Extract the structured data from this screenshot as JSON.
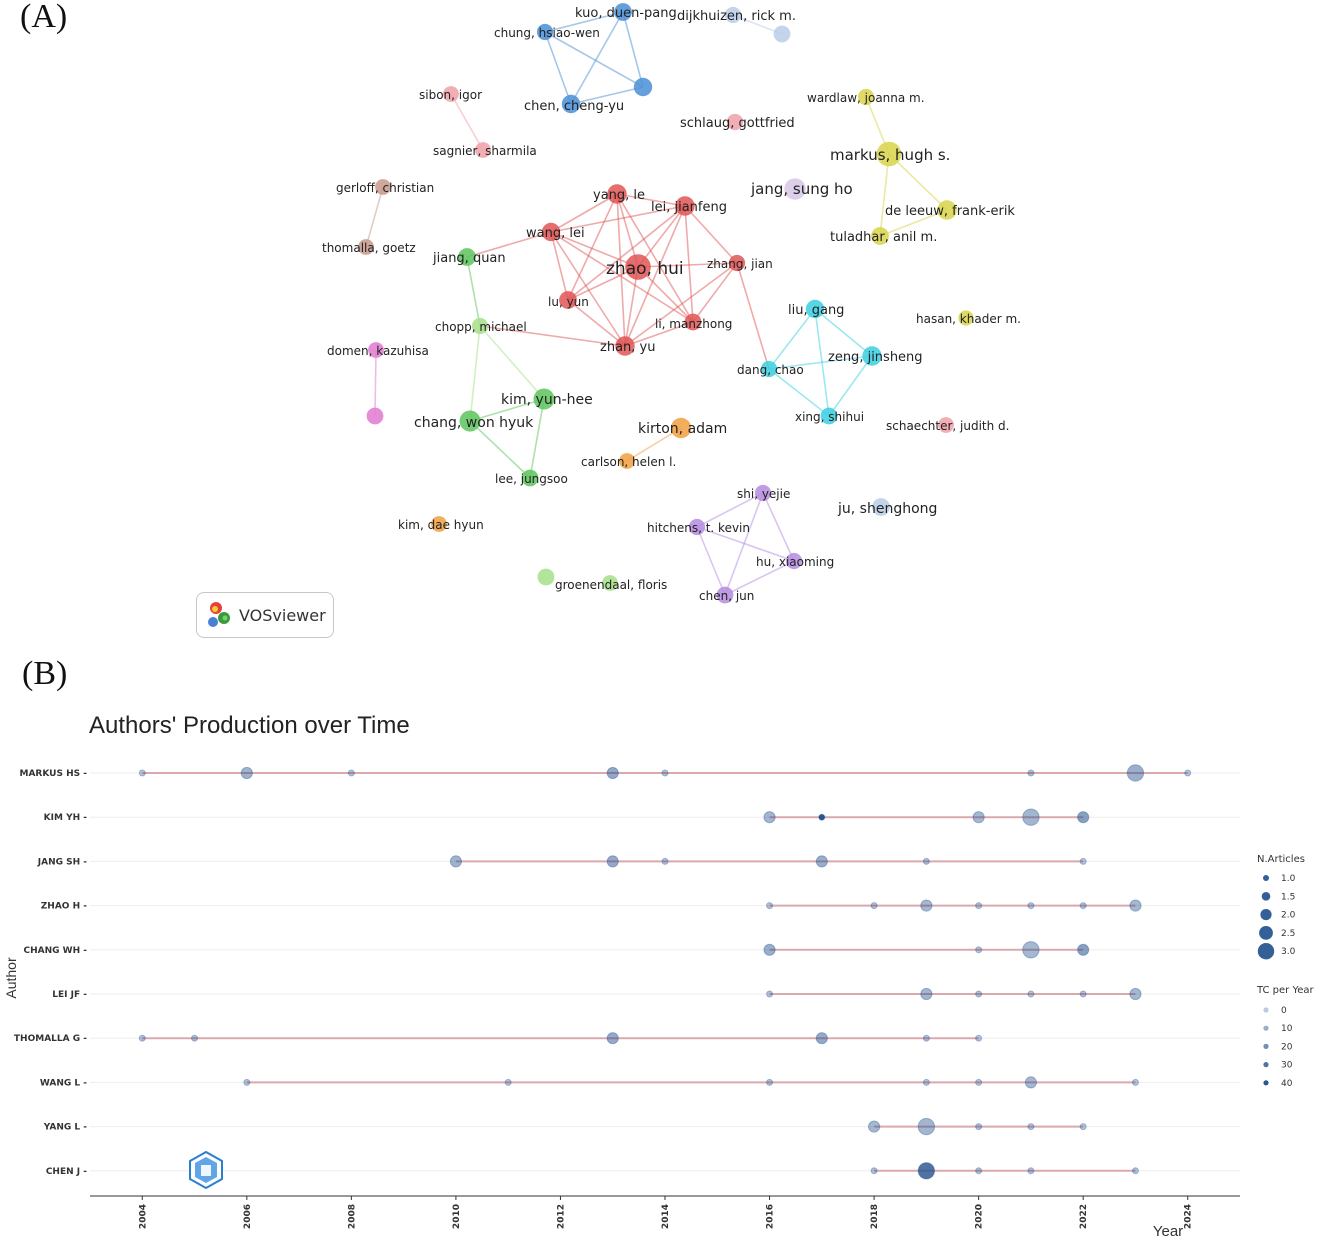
{
  "panels": {
    "a_label": "(A)",
    "b_label": "(B)"
  },
  "vosviewer": {
    "logo_text": "VOSviewer"
  },
  "chart_data": [
    {
      "type": "network",
      "clusters": {
        "red": "#e05555",
        "blue": "#4a8fd6",
        "yellow": "#d8d44a",
        "cyan": "#3ccfe0",
        "green": "#5cc45c",
        "purple": "#b58be0",
        "orange": "#f0a040",
        "pink": "#e07ad0",
        "lightpink": "#f0a0a8",
        "brown": "#c8998a",
        "lightblue": "#b9cde8",
        "lavender": "#d7c6e6",
        "lightgreen": "#a6df8a"
      },
      "nodes": [
        {
          "id": "zhao",
          "label": "zhao, hui",
          "cluster": "red",
          "size": 3
        },
        {
          "id": "yangle",
          "label": "yang, le",
          "cluster": "red",
          "size": 1.8
        },
        {
          "id": "lei",
          "label": "lei, jianfeng",
          "cluster": "red",
          "size": 1.8
        },
        {
          "id": "wanglei",
          "label": "wang, lei",
          "cluster": "red",
          "size": 1.6
        },
        {
          "id": "zhangjian",
          "label": "zhang, jian",
          "cluster": "red",
          "size": 1.2
        },
        {
          "id": "luyun",
          "label": "lu, yun",
          "cluster": "red",
          "size": 1.5
        },
        {
          "id": "limz",
          "label": "li, manzhong",
          "cluster": "red",
          "size": 1.3
        },
        {
          "id": "zhanyu",
          "label": "zhan, yu",
          "cluster": "red",
          "size": 1.8
        },
        {
          "id": "kuo",
          "label": "kuo, duen-pang",
          "cluster": "blue",
          "size": 1.5
        },
        {
          "id": "chunghw",
          "label": "chung, hsiao-wen",
          "cluster": "blue",
          "size": 1.2
        },
        {
          "id": "chency",
          "label": "chen, cheng-yu",
          "cluster": "blue",
          "size": 1.6
        },
        {
          "id": "blue4",
          "label": "",
          "cluster": "blue",
          "size": 1.6
        },
        {
          "id": "dijk",
          "label": "dijkhuizen, rick m.",
          "cluster": "lightblue",
          "size": 1.2
        },
        {
          "id": "lb2",
          "label": "",
          "cluster": "lightblue",
          "size": 1.3
        },
        {
          "id": "markus",
          "label": "markus, hugh s.",
          "cluster": "yellow",
          "size": 2.8
        },
        {
          "id": "wardlaw",
          "label": "wardlaw, joanna m.",
          "cluster": "yellow",
          "size": 1.2
        },
        {
          "id": "deleeuw",
          "label": "de leeuw, frank-erik",
          "cluster": "yellow",
          "size": 1.8
        },
        {
          "id": "tuladhar",
          "label": "tuladhar, anil m.",
          "cluster": "yellow",
          "size": 1.5
        },
        {
          "id": "jangsh",
          "label": "jang, sung ho",
          "cluster": "lavender",
          "size": 2.2
        },
        {
          "id": "schlaug",
          "label": "schlaug, gottfried",
          "cluster": "lightpink",
          "size": 1.2
        },
        {
          "id": "sibon",
          "label": "sibon, igor",
          "cluster": "lightpink",
          "size": 1.1
        },
        {
          "id": "sagnier",
          "label": "sagnier, sharmila",
          "cluster": "lightpink",
          "size": 1.1
        },
        {
          "id": "gerloff",
          "label": "gerloff, christian",
          "cluster": "brown",
          "size": 1.1
        },
        {
          "id": "thomalla",
          "label": "thomalla, goetz",
          "cluster": "brown",
          "size": 1.1
        },
        {
          "id": "jiangq",
          "label": "jiang, quan",
          "cluster": "green",
          "size": 1.5
        },
        {
          "id": "chopp",
          "label": "chopp, michael",
          "cluster": "lightgreen",
          "size": 1.2
        },
        {
          "id": "kimyh",
          "label": "kim, yun-hee",
          "cluster": "green",
          "size": 2.1
        },
        {
          "id": "changwh",
          "label": "chang, won hyuk",
          "cluster": "green",
          "size": 2.1
        },
        {
          "id": "leejs",
          "label": "lee, jungsoo",
          "cluster": "green",
          "size": 1.3
        },
        {
          "id": "domen",
          "label": "domen, kazuhisa",
          "cluster": "pink",
          "size": 1.1
        },
        {
          "id": "pink2",
          "label": "",
          "cluster": "pink",
          "size": 1.3
        },
        {
          "id": "kirton",
          "label": "kirton, adam",
          "cluster": "orange",
          "size": 2.0
        },
        {
          "id": "carlson",
          "label": "carlson, helen l.",
          "cluster": "orange",
          "size": 1.1
        },
        {
          "id": "liugang",
          "label": "liu, gang",
          "cluster": "cyan",
          "size": 1.6
        },
        {
          "id": "zengjs",
          "label": "zeng, jinsheng",
          "cluster": "cyan",
          "size": 1.8
        },
        {
          "id": "dangchao",
          "label": "dang, chao",
          "cluster": "cyan",
          "size": 1.2
        },
        {
          "id": "xingsh",
          "label": "xing, shihui",
          "cluster": "cyan",
          "size": 1.3
        },
        {
          "id": "hasan",
          "label": "hasan, khader m.",
          "cluster": "yellow",
          "size": 1.0
        },
        {
          "id": "schaechter",
          "label": "schaechter, judith d.",
          "cluster": "lightpink",
          "size": 1.1
        },
        {
          "id": "shiyj",
          "label": "shi, yejie",
          "cluster": "purple",
          "size": 1.2
        },
        {
          "id": "hitchens",
          "label": "hitchens, t. kevin",
          "cluster": "purple",
          "size": 1.2
        },
        {
          "id": "huxm",
          "label": "hu, xiaoming",
          "cluster": "purple",
          "size": 1.2
        },
        {
          "id": "chenjun",
          "label": "chen, jun",
          "cluster": "purple",
          "size": 1.3
        },
        {
          "id": "jush",
          "label": "ju, shenghong",
          "cluster": "lightblue",
          "size": 1.5
        },
        {
          "id": "kimdh",
          "label": "kim, dae hyun",
          "cluster": "orange",
          "size": 1.1
        },
        {
          "id": "groen",
          "label": "groenendaal, floris",
          "cluster": "lightgreen",
          "size": 1.1
        },
        {
          "id": "lg2",
          "label": "",
          "cluster": "lightgreen",
          "size": 1.3
        }
      ],
      "links": [
        [
          "zhao",
          "yangle"
        ],
        [
          "zhao",
          "lei"
        ],
        [
          "zhao",
          "wanglei"
        ],
        [
          "zhao",
          "zhangjian"
        ],
        [
          "zhao",
          "luyun"
        ],
        [
          "zhao",
          "limz"
        ],
        [
          "zhao",
          "zhanyu"
        ],
        [
          "yangle",
          "lei"
        ],
        [
          "yangle",
          "wanglei"
        ],
        [
          "yangle",
          "luyun"
        ],
        [
          "yangle",
          "zhanyu"
        ],
        [
          "yangle",
          "limz"
        ],
        [
          "lei",
          "wanglei"
        ],
        [
          "lei",
          "luyun"
        ],
        [
          "lei",
          "zhanyu"
        ],
        [
          "lei",
          "limz"
        ],
        [
          "lei",
          "zhangjian"
        ],
        [
          "wanglei",
          "luyun"
        ],
        [
          "wanglei",
          "zhanyu"
        ],
        [
          "wanglei",
          "limz"
        ],
        [
          "luyun",
          "zhanyu"
        ],
        [
          "limz",
          "zhanyu"
        ],
        [
          "zhangjian",
          "zhanyu"
        ],
        [
          "zhangjian",
          "limz"
        ],
        [
          "zhangjian",
          "dangchao"
        ],
        [
          "wanglei",
          "jiangq"
        ],
        [
          "zhanyu",
          "chopp"
        ],
        [
          "kuo",
          "chunghw"
        ],
        [
          "kuo",
          "chency"
        ],
        [
          "kuo",
          "blue4"
        ],
        [
          "chunghw",
          "chency"
        ],
        [
          "chunghw",
          "blue4"
        ],
        [
          "chency",
          "blue4"
        ],
        [
          "dijk",
          "lb2"
        ],
        [
          "sibon",
          "sagnier"
        ],
        [
          "gerloff",
          "thomalla"
        ],
        [
          "markus",
          "wardlaw"
        ],
        [
          "markus",
          "deleeuw"
        ],
        [
          "markus",
          "tuladhar"
        ],
        [
          "deleeuw",
          "tuladhar"
        ],
        [
          "jiangq",
          "chopp"
        ],
        [
          "chopp",
          "changwh"
        ],
        [
          "chopp",
          "kimyh"
        ],
        [
          "kimyh",
          "changwh"
        ],
        [
          "kimyh",
          "leejs"
        ],
        [
          "changwh",
          "leejs"
        ],
        [
          "domen",
          "pink2"
        ],
        [
          "kirton",
          "carlson"
        ],
        [
          "liugang",
          "zengjs"
        ],
        [
          "liugang",
          "dangchao"
        ],
        [
          "liugang",
          "xingsh"
        ],
        [
          "zengjs",
          "dangchao"
        ],
        [
          "zengjs",
          "xingsh"
        ],
        [
          "dangchao",
          "xingsh"
        ],
        [
          "shiyj",
          "hitchens"
        ],
        [
          "shiyj",
          "huxm"
        ],
        [
          "shiyj",
          "chenjun"
        ],
        [
          "hitchens",
          "huxm"
        ],
        [
          "hitchens",
          "chenjun"
        ],
        [
          "huxm",
          "chenjun"
        ]
      ]
    },
    {
      "type": "scatter",
      "title": "Authors' Production over Time",
      "xlabel": "Year",
      "ylabel": "Author",
      "xlim": [
        2003,
        2025
      ],
      "x_ticks": [
        2004,
        2006,
        2008,
        2010,
        2012,
        2014,
        2016,
        2018,
        2020,
        2022,
        2024
      ],
      "authors": [
        "MARKUS HS",
        "KIM YH",
        "JANG SH",
        "ZHAO H",
        "CHANG WH",
        "LEI JF",
        "THOMALLA G",
        "WANG L",
        "YANG L",
        "CHEN J"
      ],
      "series": [
        {
          "name": "MARKUS HS",
          "points": [
            [
              2004,
              1,
              2
            ],
            [
              2006,
              2,
              8
            ],
            [
              2008,
              1,
              2
            ],
            [
              2013,
              2,
              12
            ],
            [
              2014,
              1,
              3
            ],
            [
              2021,
              1,
              3
            ],
            [
              2023,
              3,
              9
            ],
            [
              2024,
              1,
              2
            ]
          ]
        },
        {
          "name": "KIM YH",
          "points": [
            [
              2016,
              2,
              7
            ],
            [
              2017,
              1,
              40
            ],
            [
              2020,
              2,
              6
            ],
            [
              2021,
              3,
              7
            ],
            [
              2022,
              2,
              14
            ]
          ]
        },
        {
          "name": "JANG SH",
          "points": [
            [
              2010,
              2,
              8
            ],
            [
              2013,
              2,
              11
            ],
            [
              2014,
              1,
              3
            ],
            [
              2017,
              2,
              9
            ],
            [
              2019,
              1,
              3
            ],
            [
              2022,
              1,
              2
            ]
          ]
        },
        {
          "name": "ZHAO H",
          "points": [
            [
              2016,
              1,
              3
            ],
            [
              2018,
              1,
              3
            ],
            [
              2019,
              2,
              6
            ],
            [
              2020,
              1,
              2
            ],
            [
              2021,
              1,
              2
            ],
            [
              2022,
              1,
              3
            ],
            [
              2023,
              2,
              6
            ]
          ]
        },
        {
          "name": "CHANG WH",
          "points": [
            [
              2016,
              2,
              9
            ],
            [
              2020,
              1,
              2
            ],
            [
              2021,
              3,
              6
            ],
            [
              2022,
              2,
              14
            ]
          ]
        },
        {
          "name": "LEI JF",
          "points": [
            [
              2016,
              1,
              3
            ],
            [
              2019,
              2,
              7
            ],
            [
              2020,
              1,
              3
            ],
            [
              2021,
              1,
              2
            ],
            [
              2022,
              1,
              3
            ],
            [
              2023,
              2,
              6
            ]
          ]
        },
        {
          "name": "THOMALLA G",
          "points": [
            [
              2004,
              1,
              4
            ],
            [
              2005,
              1,
              4
            ],
            [
              2013,
              2,
              11
            ],
            [
              2017,
              2,
              11
            ],
            [
              2019,
              1,
              3
            ],
            [
              2020,
              1,
              2
            ]
          ]
        },
        {
          "name": "WANG L",
          "points": [
            [
              2006,
              1,
              3
            ],
            [
              2011,
              1,
              2
            ],
            [
              2016,
              1,
              3
            ],
            [
              2019,
              1,
              2
            ],
            [
              2020,
              1,
              2
            ],
            [
              2021,
              2,
              6
            ],
            [
              2023,
              1,
              2
            ]
          ]
        },
        {
          "name": "YANG L",
          "points": [
            [
              2018,
              2,
              6
            ],
            [
              2019,
              3,
              7
            ],
            [
              2020,
              1,
              3
            ],
            [
              2021,
              1,
              2
            ],
            [
              2022,
              1,
              2
            ]
          ]
        },
        {
          "name": "CHEN J",
          "points": [
            [
              2018,
              1,
              4
            ],
            [
              2019,
              3,
              30
            ],
            [
              2020,
              1,
              3
            ],
            [
              2021,
              1,
              3
            ],
            [
              2023,
              1,
              3
            ]
          ]
        }
      ],
      "legend_size": {
        "title": "N.Articles",
        "entries": [
          "1.0",
          "1.5",
          "2.0",
          "2.5",
          "3.0"
        ],
        "values": [
          1,
          1.5,
          2,
          2.5,
          3
        ]
      },
      "legend_color": {
        "title": "TC per Year",
        "entries": [
          "0",
          "10",
          "20",
          "30",
          "40"
        ],
        "values": [
          0,
          10,
          20,
          30,
          40
        ]
      },
      "line_color": "#d9a9ad",
      "point_color": "#1f4e8c"
    }
  ]
}
